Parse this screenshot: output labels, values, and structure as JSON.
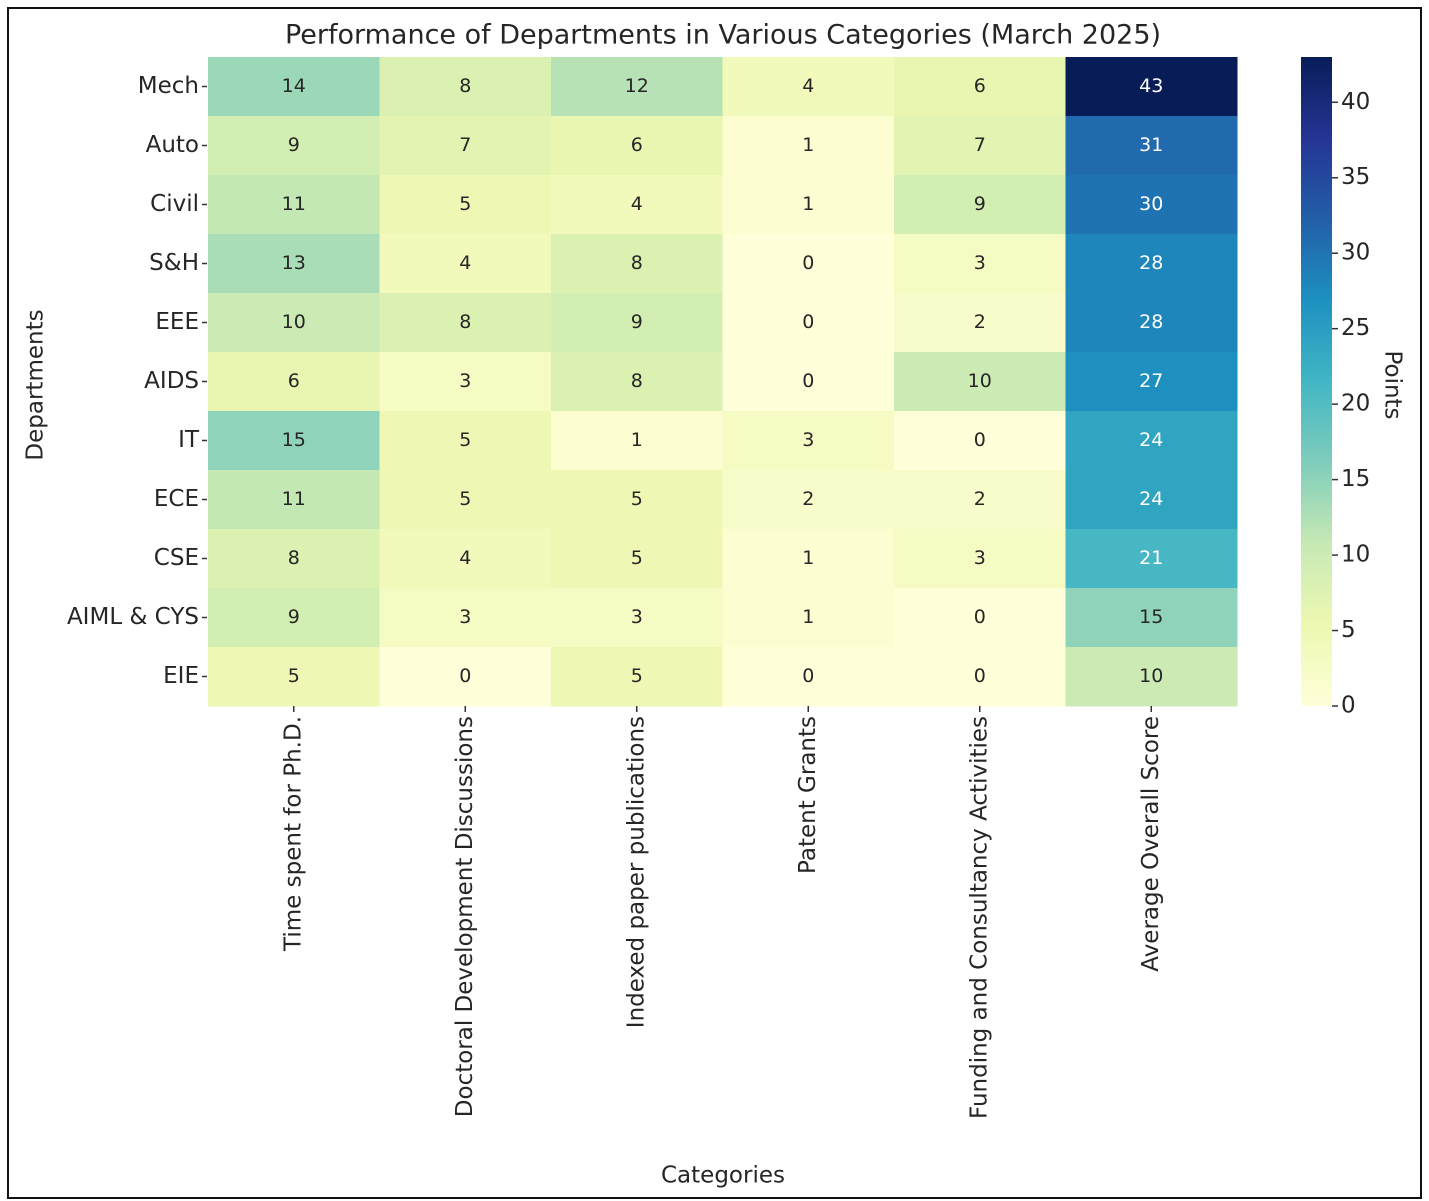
{
  "chart_data": {
    "type": "heatmap",
    "title": "Performance of Departments in Various Categories (March 2025)",
    "xlabel": "Categories",
    "ylabel": "Departments",
    "colorbar_label": "Points",
    "categories": [
      "Time spent for Ph.D.",
      "Doctoral Development Discussions",
      "Indexed paper publications",
      "Patent Grants",
      "Funding and Consultancy Activities",
      "Average Overall Score"
    ],
    "rows": [
      "Mech",
      "Auto",
      "Civil",
      "S&H",
      "EEE",
      "AIDS",
      "IT",
      "ECE",
      "CSE",
      "AIML & CYS",
      "EIE"
    ],
    "values": [
      [
        14,
        8,
        12,
        4,
        6,
        43
      ],
      [
        9,
        7,
        6,
        1,
        7,
        31
      ],
      [
        11,
        5,
        4,
        1,
        9,
        30
      ],
      [
        13,
        4,
        8,
        0,
        3,
        28
      ],
      [
        10,
        8,
        9,
        0,
        2,
        28
      ],
      [
        6,
        3,
        8,
        0,
        10,
        27
      ],
      [
        15,
        5,
        1,
        3,
        0,
        24
      ],
      [
        11,
        5,
        5,
        2,
        2,
        24
      ],
      [
        8,
        4,
        5,
        1,
        3,
        21
      ],
      [
        9,
        3,
        3,
        1,
        0,
        15
      ],
      [
        5,
        0,
        5,
        0,
        0,
        10
      ]
    ],
    "clim": [
      0,
      43
    ],
    "cticks": [
      0,
      5,
      10,
      15,
      20,
      25,
      30,
      35,
      40
    ],
    "colorscale": [
      "#ffffd9",
      "#edf8b1",
      "#c7e9b4",
      "#7fcdbb",
      "#41b6c4",
      "#1d91c0",
      "#225ea8",
      "#253494",
      "#081d58"
    ]
  }
}
